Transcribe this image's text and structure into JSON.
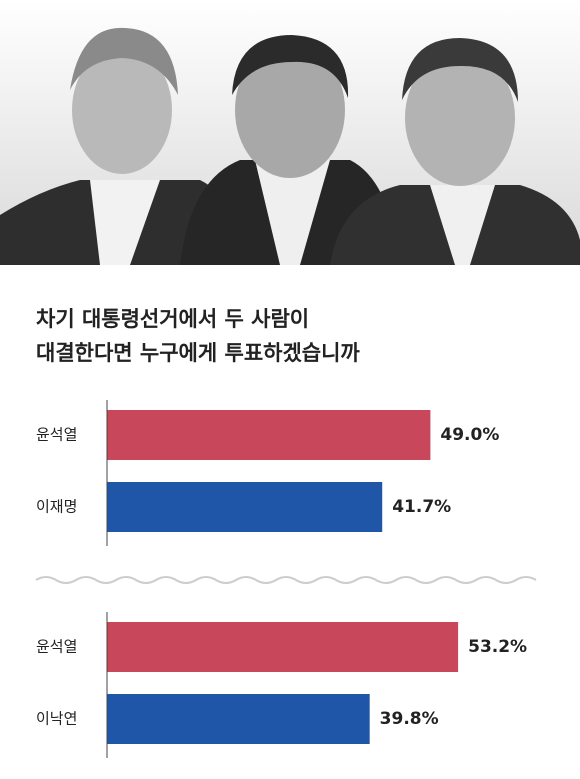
{
  "title_lines": [
    "차기 대통령선거에서 두 사람이",
    "대결한다면 누구에게 투표하겠습니까"
  ],
  "chart_data": [
    {
      "type": "bar",
      "orientation": "horizontal",
      "categories": [
        "윤석열",
        "이재명"
      ],
      "values": [
        49.0,
        41.7
      ],
      "value_labels": [
        "49.0%",
        "41.7%"
      ],
      "colors": [
        "#c8475a",
        "#1f56a8"
      ],
      "xlim": [
        0,
        60
      ]
    },
    {
      "type": "bar",
      "orientation": "horizontal",
      "categories": [
        "윤석열",
        "이낙연"
      ],
      "values": [
        53.2,
        39.8
      ],
      "value_labels": [
        "53.2%",
        "39.8%"
      ],
      "colors": [
        "#c8475a",
        "#1f56a8"
      ],
      "xlim": [
        0,
        60
      ]
    }
  ]
}
